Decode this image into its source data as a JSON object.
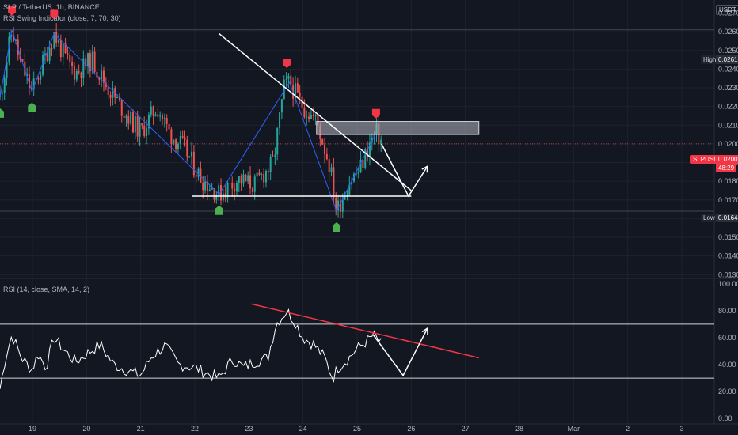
{
  "header": {
    "symbol_line": "SLP / TetherUS, 1h, BINANCE",
    "indicator_line": "RSI Swing Indicator (close, 7, 70, 30)",
    "rsi_line": "RSI (14, close, SMA, 14, 2)",
    "currency_badge": "USDT"
  },
  "price_labels": {
    "high_tag": "High",
    "high_value": "0.0261",
    "low_tag": "Low",
    "low_value": "0.0164",
    "symbol_tag": "SLPUSDT",
    "last_price": "0.0200",
    "countdown": "48:29"
  },
  "colors": {
    "background": "#131722",
    "up": "#26a69a",
    "down": "#ef5350",
    "zigzag": "#2962ff",
    "rsi_line": "#ffffff",
    "trend_red": "#f23645",
    "signal_up": "#4caf50",
    "signal_down": "#f23645"
  },
  "chart_data": [
    {
      "type": "candlestick",
      "title": "SLP / TetherUS, 1h, BINANCE",
      "y_ticks": [
        "0.0270",
        "0.0260",
        "0.0250",
        "0.0240",
        "0.0230",
        "0.0220",
        "0.0210",
        "0.0200",
        "0.0190",
        "0.0180",
        "0.0170",
        "0.0160",
        "0.0150",
        "0.0140",
        "0.0130"
      ],
      "ylim": [
        0.0128,
        0.0277
      ],
      "x_ticks": [
        "19",
        "20",
        "21",
        "22",
        "23",
        "24",
        "25",
        "26",
        "27",
        "28",
        "Mar",
        "2",
        "3"
      ],
      "x_tick_days": [
        19,
        20,
        21,
        22,
        23,
        24,
        25,
        26,
        27,
        28,
        29,
        30,
        31
      ],
      "xlim": [
        18.4,
        31.6
      ],
      "high": 0.0261,
      "low": 0.0164,
      "last": 0.02,
      "price_path": [
        {
          "x": 18.4,
          "y": 0.0225
        },
        {
          "x": 18.62,
          "y": 0.0261
        },
        {
          "x": 18.78,
          "y": 0.0243
        },
        {
          "x": 18.99,
          "y": 0.0228
        },
        {
          "x": 19.15,
          "y": 0.024
        },
        {
          "x": 19.4,
          "y": 0.0259
        },
        {
          "x": 19.6,
          "y": 0.0246
        },
        {
          "x": 19.8,
          "y": 0.0238
        },
        {
          "x": 20.1,
          "y": 0.0245
        },
        {
          "x": 20.35,
          "y": 0.0232
        },
        {
          "x": 20.7,
          "y": 0.0217
        },
        {
          "x": 21.0,
          "y": 0.0206
        },
        {
          "x": 21.3,
          "y": 0.022
        },
        {
          "x": 21.55,
          "y": 0.0205
        },
        {
          "x": 21.8,
          "y": 0.0198
        },
        {
          "x": 22.1,
          "y": 0.0182
        },
        {
          "x": 22.45,
          "y": 0.0173
        },
        {
          "x": 22.8,
          "y": 0.0181
        },
        {
          "x": 23.1,
          "y": 0.0178
        },
        {
          "x": 23.45,
          "y": 0.019
        },
        {
          "x": 23.65,
          "y": 0.023
        },
        {
          "x": 23.75,
          "y": 0.0233
        },
        {
          "x": 23.95,
          "y": 0.0222
        },
        {
          "x": 24.25,
          "y": 0.0212
        },
        {
          "x": 24.5,
          "y": 0.0188
        },
        {
          "x": 24.62,
          "y": 0.0164
        },
        {
          "x": 24.85,
          "y": 0.018
        },
        {
          "x": 25.05,
          "y": 0.0186
        },
        {
          "x": 25.2,
          "y": 0.0198
        },
        {
          "x": 25.35,
          "y": 0.0206
        },
        {
          "x": 25.48,
          "y": 0.02
        }
      ],
      "zigzag": [
        {
          "x": 18.4,
          "y": 0.0225
        },
        {
          "x": 18.62,
          "y": 0.0261
        },
        {
          "x": 18.99,
          "y": 0.0228
        },
        {
          "x": 19.4,
          "y": 0.0259
        },
        {
          "x": 22.45,
          "y": 0.0173
        },
        {
          "x": 23.75,
          "y": 0.0233
        },
        {
          "x": 24.62,
          "y": 0.0164
        },
        {
          "x": 25.35,
          "y": 0.0206
        }
      ],
      "sell_signals": [
        {
          "x": 18.62,
          "y": 0.0261
        },
        {
          "x": 19.4,
          "y": 0.0259
        },
        {
          "x": 23.7,
          "y": 0.0233
        },
        {
          "x": 25.35,
          "y": 0.0206
        }
      ],
      "buy_signals": [
        {
          "x": 18.4,
          "y": 0.0225
        },
        {
          "x": 18.99,
          "y": 0.0228
        },
        {
          "x": 22.45,
          "y": 0.0173
        },
        {
          "x": 24.62,
          "y": 0.0164
        }
      ],
      "resistance_line": [
        {
          "x": 22.45,
          "y": 0.0259
        },
        {
          "x": 26.0,
          "y": 0.0175
        }
      ],
      "support_line": [
        {
          "x": 21.95,
          "y": 0.0172
        },
        {
          "x": 26.0,
          "y": 0.0172
        }
      ],
      "supply_zone": {
        "x0": 24.25,
        "x1": 27.25,
        "y0": 0.0205,
        "y1": 0.0212
      },
      "projection": [
        {
          "x": 25.45,
          "y": 0.02
        },
        {
          "x": 25.95,
          "y": 0.0172
        },
        {
          "x": 26.3,
          "y": 0.0188
        }
      ]
    },
    {
      "type": "line",
      "title": "RSI (14, close, SMA, 14, 2)",
      "y_ticks": [
        "100.00",
        "80.00",
        "60.00",
        "40.00",
        "20.00",
        "0.00"
      ],
      "ylim": [
        0,
        100
      ],
      "upper_band": 70,
      "lower_band": 30,
      "rsi_path": [
        {
          "x": 18.4,
          "y": 22
        },
        {
          "x": 18.5,
          "y": 45
        },
        {
          "x": 18.62,
          "y": 62
        },
        {
          "x": 18.8,
          "y": 45
        },
        {
          "x": 18.99,
          "y": 36
        },
        {
          "x": 19.1,
          "y": 48
        },
        {
          "x": 19.25,
          "y": 38
        },
        {
          "x": 19.4,
          "y": 60
        },
        {
          "x": 19.6,
          "y": 50
        },
        {
          "x": 19.8,
          "y": 42
        },
        {
          "x": 20.0,
          "y": 48
        },
        {
          "x": 20.25,
          "y": 55
        },
        {
          "x": 20.5,
          "y": 40
        },
        {
          "x": 20.8,
          "y": 35
        },
        {
          "x": 21.0,
          "y": 32
        },
        {
          "x": 21.2,
          "y": 46
        },
        {
          "x": 21.45,
          "y": 54
        },
        {
          "x": 21.7,
          "y": 40
        },
        {
          "x": 22.0,
          "y": 38
        },
        {
          "x": 22.25,
          "y": 33
        },
        {
          "x": 22.45,
          "y": 30
        },
        {
          "x": 22.7,
          "y": 44
        },
        {
          "x": 22.9,
          "y": 38
        },
        {
          "x": 23.1,
          "y": 42
        },
        {
          "x": 23.35,
          "y": 45
        },
        {
          "x": 23.5,
          "y": 70
        },
        {
          "x": 23.7,
          "y": 80
        },
        {
          "x": 23.85,
          "y": 72
        },
        {
          "x": 24.0,
          "y": 60
        },
        {
          "x": 24.2,
          "y": 55
        },
        {
          "x": 24.4,
          "y": 45
        },
        {
          "x": 24.55,
          "y": 30
        },
        {
          "x": 24.65,
          "y": 38
        },
        {
          "x": 24.85,
          "y": 45
        },
        {
          "x": 25.0,
          "y": 52
        },
        {
          "x": 25.2,
          "y": 58
        },
        {
          "x": 25.3,
          "y": 62
        },
        {
          "x": 25.45,
          "y": 55
        }
      ],
      "trend_line": [
        {
          "x": 23.05,
          "y": 85
        },
        {
          "x": 27.25,
          "y": 45
        }
      ],
      "projection": [
        {
          "x": 25.3,
          "y": 62
        },
        {
          "x": 25.85,
          "y": 32
        },
        {
          "x": 26.3,
          "y": 67
        }
      ]
    }
  ]
}
